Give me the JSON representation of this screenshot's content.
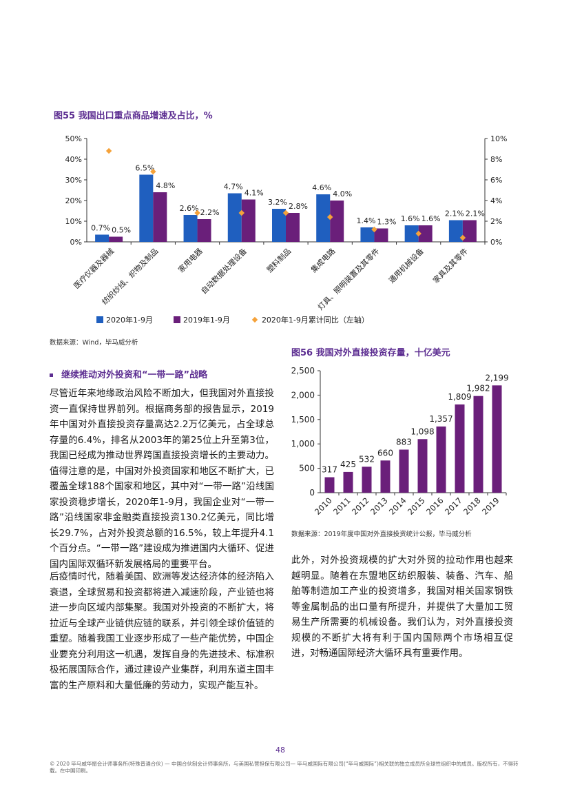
{
  "chart_data": [
    {
      "type": "bar",
      "title": "图55 我国出口重点商品增速及占比，%",
      "categories": [
        "医疗仪器及器械",
        "纺织纱线、织物及制品",
        "家用电器",
        "自动数据处理设备",
        "塑料制品",
        "集成电路",
        "灯具、照明装置及其零件",
        "通用机械设备",
        "家具及其零件"
      ],
      "series": [
        {
          "name": "2020年1-9月",
          "type": "bar",
          "axis": "right",
          "values": [
            0.7,
            6.5,
            2.6,
            4.7,
            3.2,
            4.6,
            1.4,
            1.6,
            2.1
          ],
          "labels": [
            "0.7%",
            "6.5%",
            "2.6%",
            "4.7%",
            "3.2%",
            "4.6%",
            "1.4%",
            "1.6%",
            "2.1%"
          ],
          "color": "#1f5fbf"
        },
        {
          "name": "2019年1-9月",
          "type": "bar",
          "axis": "right",
          "values": [
            0.5,
            4.8,
            2.2,
            4.1,
            2.8,
            4.0,
            1.3,
            1.6,
            2.1
          ],
          "labels": [
            "0.5%",
            "4.8%",
            "2.2%",
            "4.1%",
            "2.8%",
            "4.0%",
            "1.3%",
            "1.6%",
            "2.1%"
          ],
          "color": "#6a1f7a"
        },
        {
          "name": "2020年1-9月累计同比（左轴）",
          "type": "scatter",
          "axis": "left",
          "values": [
            44,
            34,
            14,
            14,
            14,
            12,
            6,
            4,
            2
          ],
          "color": "#f5a23a"
        }
      ],
      "left_ticks": [
        "0%",
        "10%",
        "20%",
        "30%",
        "40%",
        "50%"
      ],
      "left_range": [
        0,
        50
      ],
      "right_ticks": [
        "0%",
        "2%",
        "4%",
        "6%",
        "8%",
        "10%"
      ],
      "right_range": [
        0,
        10
      ],
      "legend_position": "bottom",
      "grid": false
    },
    {
      "type": "bar",
      "title": "图56 我国对外直接投资存量，十亿美元",
      "categories": [
        "2010",
        "2011",
        "2012",
        "2013",
        "2014",
        "2015",
        "2016",
        "2017",
        "2018",
        "2019"
      ],
      "values": [
        317,
        425,
        532,
        660,
        883,
        1098,
        1357,
        1809,
        1982,
        2199
      ],
      "labels": [
        "317",
        "425",
        "532",
        "660",
        "883",
        "1,098",
        "1,357",
        "1,809",
        "1,982",
        "2,199"
      ],
      "y_ticks": [
        "0",
        "500",
        "1,000",
        "1,500",
        "2,000",
        "2,500"
      ],
      "ylim": [
        0,
        2500
      ],
      "color": "#6a1f7a",
      "grid": false
    }
  ],
  "source1": "数据来源：Wind，毕马威分析",
  "source2": "数据来源：2019年度中国对外直接投资统计公报，毕马威分析",
  "section_heading": "继续推动对外投资和“一带一路”战略",
  "paragraphs": {
    "p1": "尽管近年来地缘政治风险不断加大，但我国对外直接投资一直保持世界前列。根据商务部的报告显示，2019年中国对外直接投资存量高达2.2万亿美元，占全球总存量的6.4%，排名从2003年的第25位上升至第3位，我国已经成为推动世界跨国直接投资增长的主要动力。值得注意的是，中国对外投资国家和地区不断扩大，已覆盖全球188个国家和地区，其中对“一带一路”沿线国家投资稳步增长，2020年1-9月，我国企业对“一带一路”沿线国家非金融类直接投资130.2亿美元，同比增长29.7%，占对外投资总额的16.5%，较上年提升4.1个百分点。“一带一路”建设成为推进国内大循环、促进国内国际双循环新发展格局的重要平台。",
    "p2": "后疫情时代，随着美国、欧洲等发达经济体的经济陷入衰退，全球贸易和投资都将进入减速阶段，产业链也将进一步向区域内部集聚。我国对外投资的不断扩大，将拉近与全球产业链供应链的联系，并引领全球价值链的重塑。随着我国工业逐步形成了一些产能优势，中国企业要充分利用这一机遇，发挥自身的先进技术、标准积极拓展国际合作，通过建设产业集群，利用东道主国丰富的生产原料和大量低廉的劳动力，实现产能互补。",
    "p3": "此外，对外投资规模的扩大对外贸的拉动作用也越来越明显。随着在东盟地区纺织服装、装备、汽车、船舶等制造加工产业的投资增多，我国对相关国家钢铁等金属制品的出口量有所提升，并提供了大量加工贸易生产所需要的机械设备。我们认为，对外直接投资规模的不断扩大将有利于国内国际两个市场相互促进，对畅通国际经济大循环具有重要作用。"
  },
  "page_number": "48",
  "footer": "© 2020 毕马威华振会计师事务所(特殊普通合伙) — 中国合伙制会计师事务所，与美国私营担保有限公司— 毕马威国际有限公司(“毕马威国际”)相关联的独立成员所全球性组织中的成员。版权所有，不得转载。在中国印刷。"
}
